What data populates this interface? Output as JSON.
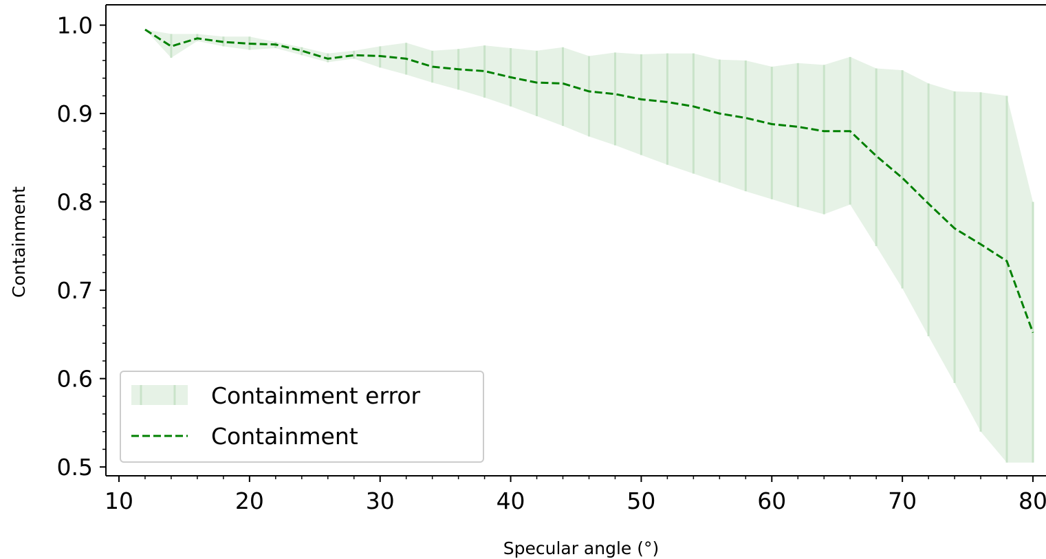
{
  "chart_data": {
    "type": "line",
    "title": "",
    "xlabel": "Specular angle (°)",
    "ylabel": "Containment",
    "xlim": [
      9,
      81
    ],
    "ylim": [
      0.49,
      1.023
    ],
    "x_ticks": [
      10,
      20,
      30,
      40,
      50,
      60,
      70,
      80
    ],
    "y_ticks": [
      0.5,
      0.6,
      0.7,
      0.8,
      0.9,
      1.0
    ],
    "x_tick_labels": [
      "10",
      "20",
      "30",
      "40",
      "50",
      "60",
      "70",
      "80"
    ],
    "y_tick_labels": [
      "0.5",
      "0.6",
      "0.7",
      "0.8",
      "0.9",
      "1.0"
    ],
    "grid": false,
    "legend_position": "lower-left",
    "colors": {
      "line": "#008000",
      "band_fill": "#e6f2e6",
      "band_hatch": "#c9e3c9"
    },
    "series": [
      {
        "name": "Containment",
        "style": "dashed",
        "x": [
          12,
          14,
          16,
          18,
          20,
          22,
          24,
          26,
          28,
          30,
          32,
          34,
          36,
          38,
          40,
          42,
          44,
          46,
          48,
          50,
          52,
          54,
          56,
          58,
          60,
          62,
          64,
          66,
          68,
          70,
          72,
          74,
          76,
          78,
          80
        ],
        "y": [
          0.995,
          0.976,
          0.985,
          0.981,
          0.979,
          0.978,
          0.971,
          0.962,
          0.966,
          0.965,
          0.962,
          0.953,
          0.95,
          0.948,
          0.941,
          0.935,
          0.934,
          0.925,
          0.922,
          0.916,
          0.913,
          0.908,
          0.9,
          0.895,
          0.888,
          0.885,
          0.88,
          0.88,
          0.852,
          0.827,
          0.798,
          0.77,
          0.752,
          0.733,
          0.652
        ]
      },
      {
        "name": "Containment error",
        "style": "band",
        "x": [
          12,
          14,
          16,
          18,
          20,
          22,
          24,
          26,
          28,
          30,
          32,
          34,
          36,
          38,
          40,
          42,
          44,
          46,
          48,
          50,
          52,
          54,
          56,
          58,
          60,
          62,
          64,
          66,
          68,
          70,
          72,
          74,
          76,
          78,
          80
        ],
        "lower": [
          0.995,
          0.963,
          0.982,
          0.976,
          0.972,
          0.974,
          0.966,
          0.958,
          0.962,
          0.952,
          0.944,
          0.935,
          0.927,
          0.918,
          0.908,
          0.897,
          0.886,
          0.874,
          0.864,
          0.853,
          0.842,
          0.832,
          0.822,
          0.812,
          0.803,
          0.794,
          0.786,
          0.797,
          0.75,
          0.702,
          0.648,
          0.595,
          0.54,
          0.505,
          0.505
        ],
        "upper": [
          0.995,
          0.99,
          0.99,
          0.987,
          0.987,
          0.981,
          0.975,
          0.968,
          0.971,
          0.976,
          0.98,
          0.971,
          0.973,
          0.977,
          0.974,
          0.971,
          0.975,
          0.965,
          0.969,
          0.967,
          0.968,
          0.968,
          0.961,
          0.96,
          0.953,
          0.957,
          0.955,
          0.964,
          0.951,
          0.949,
          0.934,
          0.925,
          0.924,
          0.92,
          0.8
        ]
      }
    ]
  }
}
